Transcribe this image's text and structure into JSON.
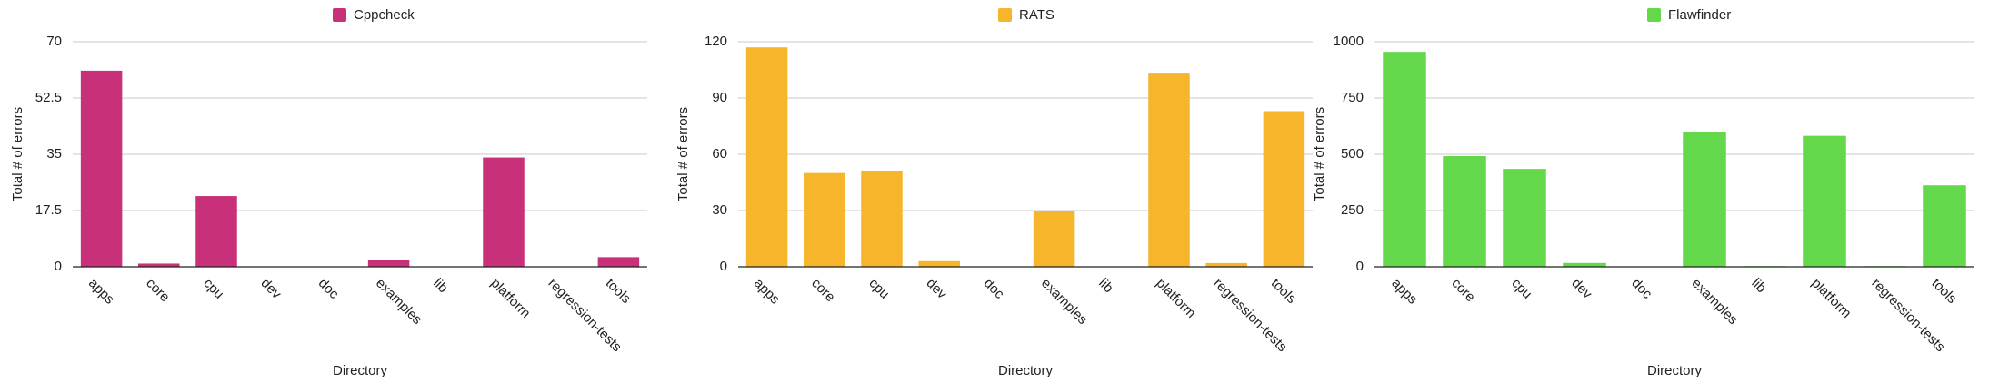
{
  "chart_data": [
    {
      "type": "bar",
      "x_label": "Directory",
      "y_label": "Total # of errors",
      "categories": [
        "apps",
        "core",
        "cpu",
        "dev",
        "doc",
        "examples",
        "lib",
        "platform",
        "regression-tests",
        "tools"
      ],
      "series": [
        {
          "name": "Cppcheck",
          "color": "#c8317a",
          "values": [
            61,
            1,
            22,
            0,
            0,
            2,
            0,
            34,
            0,
            3
          ]
        }
      ],
      "ylim": [
        0,
        70
      ],
      "yticks": [
        0,
        17.5,
        35,
        52.5,
        70
      ],
      "grid": true
    },
    {
      "type": "bar",
      "x_label": "Directory",
      "y_label": "Total # of errors",
      "categories": [
        "apps",
        "core",
        "cpu",
        "dev",
        "doc",
        "examples",
        "lib",
        "platform",
        "regression-tests",
        "tools"
      ],
      "series": [
        {
          "name": "RATS",
          "color": "#f7b52c",
          "values": [
            117,
            50,
            51,
            3,
            0,
            30,
            0,
            103,
            2,
            83
          ]
        }
      ],
      "ylim": [
        0,
        120
      ],
      "yticks": [
        0,
        30,
        60,
        90,
        120
      ],
      "grid": true
    },
    {
      "type": "bar",
      "x_label": "Directory",
      "y_label": "Total # of errors",
      "categories": [
        "apps",
        "core",
        "cpu",
        "dev",
        "doc",
        "examples",
        "lib",
        "platform",
        "regression-tests",
        "tools"
      ],
      "series": [
        {
          "name": "Flawfinder",
          "color": "#62d84a",
          "values": [
            955,
            492,
            435,
            17,
            0,
            599,
            3,
            582,
            3,
            362
          ]
        }
      ],
      "ylim": [
        0,
        1000
      ],
      "yticks": [
        0,
        250,
        500,
        750,
        1000
      ],
      "grid": true
    }
  ]
}
